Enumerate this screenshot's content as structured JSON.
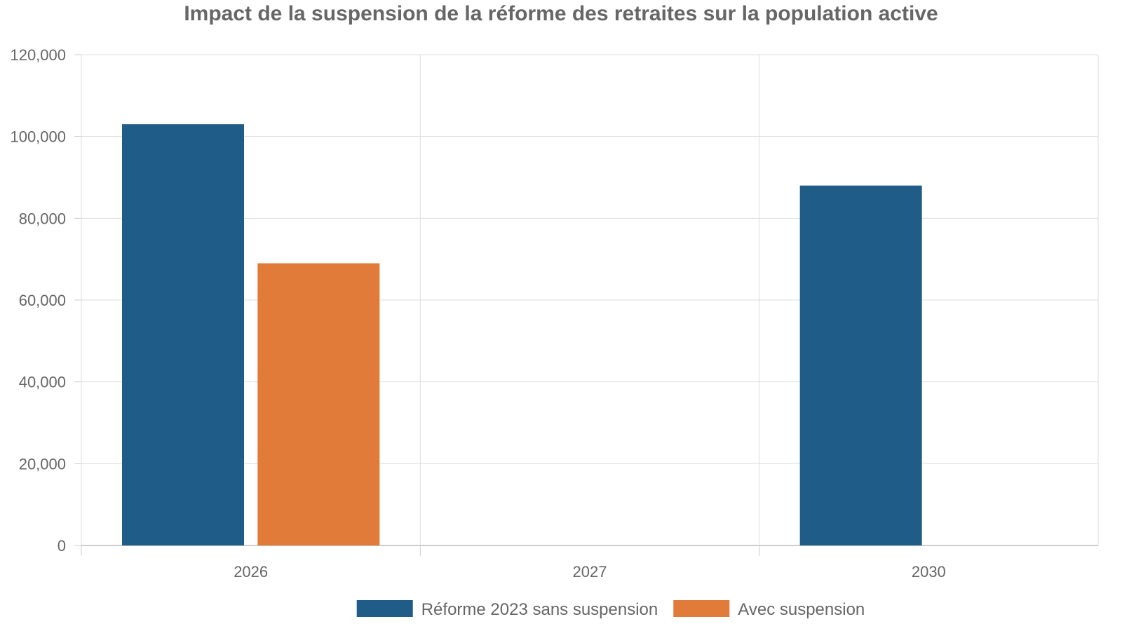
{
  "chart_data": {
    "type": "bar",
    "title": "Impact de la suspension de la réforme des retraites sur la population active",
    "xlabel": "",
    "ylabel": "",
    "categories": [
      "2026",
      "2027",
      "2030"
    ],
    "series": [
      {
        "name": "Réforme 2023 sans suspension",
        "values": [
          103000,
          null,
          88000
        ],
        "color": "#1f5c87"
      },
      {
        "name": "Avec suspension",
        "values": [
          69000,
          null,
          null
        ],
        "color": "#e07b39"
      }
    ],
    "ylim": [
      0,
      120000
    ],
    "yticks": [
      0,
      20000,
      40000,
      60000,
      80000,
      100000,
      120000
    ],
    "ytick_labels": [
      "0",
      "20,000",
      "40,000",
      "60,000",
      "80,000",
      "100,000",
      "120,000"
    ],
    "grid": true,
    "legend_position": "bottom-center"
  }
}
